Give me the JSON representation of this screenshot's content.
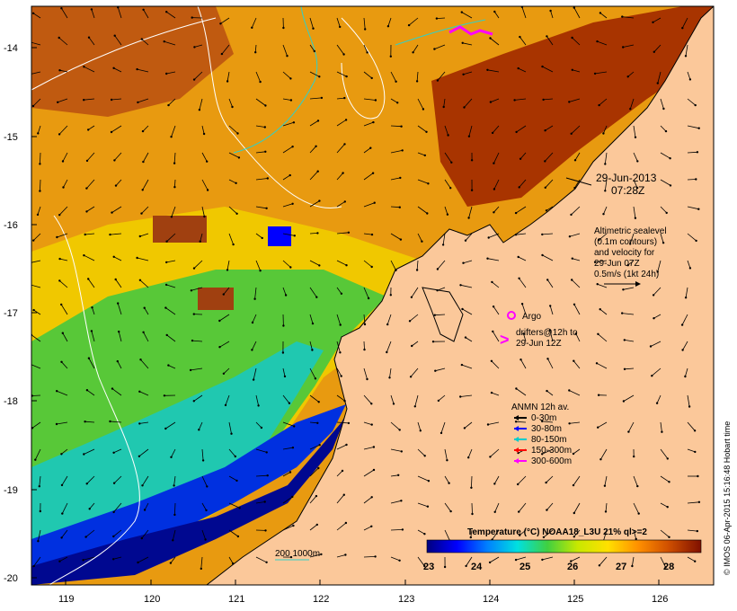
{
  "map": {
    "y_ticks": [
      "-14",
      "-15",
      "-16",
      "-17",
      "-18",
      "-19",
      "-20"
    ],
    "x_ticks": [
      "119",
      "120",
      "121",
      "122",
      "123",
      "124",
      "125",
      "126"
    ],
    "date": "29-Jun-2013",
    "time": "07:28Z",
    "altimetric_lines": [
      "Altimetric sealevel",
      "(0.1m contours)",
      "and velocity for",
      "29-Jun 07Z",
      "0.5m/s (1kt 24h)"
    ],
    "argo_label": "Argo",
    "drifters_lines": [
      "drifters@12h to",
      "29-Jun 12Z"
    ],
    "anmn_title": "ANMN 12h av.",
    "anmn_legend": [
      {
        "label": "0-30m",
        "color": "#000000"
      },
      {
        "label": "30-80m",
        "color": "#0000ff"
      },
      {
        "label": "80-150m",
        "color": "#00cccc"
      },
      {
        "label": "150-300m",
        "color": "#ff0000"
      },
      {
        "label": "300-600m",
        "color": "#ff00ff"
      }
    ],
    "depth_label": "200  1000m",
    "colorbar_title": "Temperature (°C) NOAA18_L3U 21% ql>=2",
    "colorbar_ticks": [
      "23",
      "24",
      "25",
      "26",
      "27",
      "28"
    ],
    "credit": "© IMOS 06-Apr-2015 15:16:48 Hobart time",
    "colors": {
      "land": "#fbc89a",
      "sst_scale": [
        "#00007f",
        "#0000ff",
        "#0080ff",
        "#00e0e0",
        "#40d040",
        "#c8e800",
        "#ffe000",
        "#ff9000",
        "#d05000",
        "#7f1000"
      ]
    }
  }
}
